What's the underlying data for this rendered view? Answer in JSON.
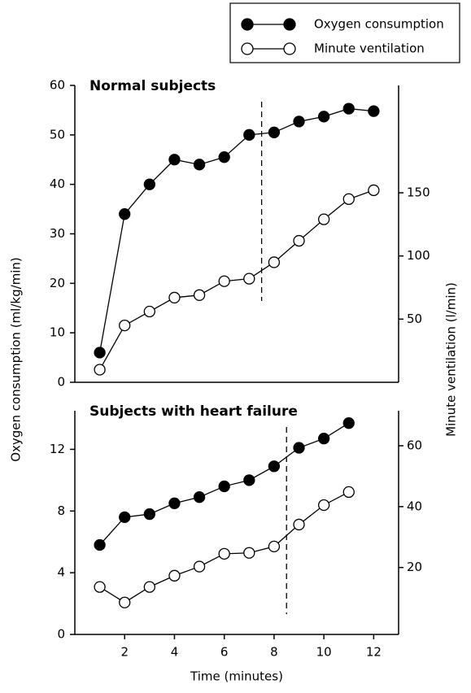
{
  "chart_data": [
    {
      "type": "line",
      "title": "Normal subjects",
      "x": [
        1,
        2,
        3,
        4,
        5,
        6,
        7,
        8,
        9,
        10,
        11,
        12
      ],
      "series": [
        {
          "name": "Oxygen consumption",
          "color": "#000000",
          "marker": "filled",
          "values": [
            6,
            34,
            40,
            45,
            44,
            45.5,
            50,
            50.5,
            52.7,
            53.7,
            55.3,
            54.8
          ]
        },
        {
          "name": "Minute ventilation",
          "color": "#ffffff",
          "marker": "open",
          "axis": "y2",
          "values": [
            10,
            45,
            56,
            67,
            69,
            80,
            82,
            95,
            112,
            129,
            145,
            152
          ]
        }
      ],
      "xlim": [
        0,
        13
      ],
      "ylim": [
        0,
        60
      ],
      "yticks": [
        0,
        10,
        20,
        30,
        40,
        50,
        60
      ],
      "y2lim": [
        0,
        235
      ],
      "y2ticks": [
        50,
        100,
        150
      ],
      "vline": 7.5,
      "ylabel": "Oxygen consumption (ml/kg/min)",
      "y2label": "Minute ventilation (l/min)"
    },
    {
      "type": "line",
      "title": "Subjects with heart failure",
      "x": [
        1,
        2,
        3,
        4,
        5,
        6,
        7,
        8,
        9,
        10,
        11
      ],
      "series": [
        {
          "color": "#000000",
          "marker": "filled",
          "values": [
            5.8,
            7.6,
            7.8,
            8.5,
            8.9,
            9.6,
            10,
            10.9,
            12.1,
            12.7,
            13.7
          ]
        },
        {
          "color": "#ffffff",
          "marker": "open",
          "axis": "y2",
          "values": [
            13.6,
            8.5,
            13.6,
            17.3,
            20.3,
            24.5,
            24.8,
            26.9,
            34.1,
            40.5,
            44.8
          ]
        }
      ],
      "xlim": [
        0,
        13
      ],
      "xticks": [
        2,
        4,
        6,
        8,
        10,
        12
      ],
      "ylim": [
        0,
        14.5
      ],
      "yticks": [
        0,
        4,
        8,
        12
      ],
      "y2lim": [
        -2,
        71.5
      ],
      "y2ticks": [
        20,
        40,
        60
      ],
      "vline": 8.5,
      "xlabel": "Time (minutes)"
    }
  ]
}
